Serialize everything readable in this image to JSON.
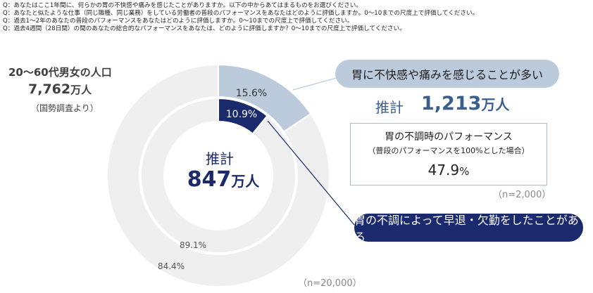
{
  "questions": [
    "Q：あなたはここ1年間に、何らかの胃の不快感や痛みを感じたことがありますか。以下の中からあてはまるものをお選びください。",
    "Q：あなたと似たような仕事（同じ職種、同じ業務）をしている労働者の普段のパフォーマンスをあなたはどのように評価しますか。0～10までの尺度上で評価してください。",
    "Q：過去1～2年のあなたの普段のパフォーマンスをあなたはどのように評価しますか。0～10までの尺度上で評価してください。",
    "Q：過去4週間（28日間）の間のあなたの総合的なパフォーマンスをあなたは、どのように評価しますか？0～10までの尺度上で評価してください。"
  ],
  "population": {
    "title": "20～60代男女の人口",
    "value": "7,762",
    "unit": "万人",
    "source": "（国勢調査より）"
  },
  "center": {
    "label": "推計",
    "value": "847",
    "unit": "万人"
  },
  "callout_discomfort": {
    "label": "胃に不快感や痛みを感じることが多い",
    "est_label": "推計",
    "est_value": "1,213",
    "est_unit": "万人"
  },
  "performance": {
    "title": "胃の不調時のパフォーマンス",
    "note": "（普段のパフォーマンスを100%とした場合）",
    "value": "47.9",
    "unit": "%"
  },
  "n_small": "（n=2,000）",
  "callout_absence": {
    "label": "胃の不調によって早退・欠勤をしたことがある"
  },
  "n_large": "（n=20,000）",
  "colors": {
    "outer_highlight": "#bccbdc",
    "inner_highlight": "#1a2a6c",
    "rest": "#efefef",
    "text_dark": "#1a2a6c",
    "text_mid": "#3a5f8f"
  },
  "chart_data": {
    "type": "pie",
    "rings": [
      {
        "ring": "outer",
        "slices": [
          {
            "label": "胃に不快感や痛みを感じることが多い",
            "value": 15.6,
            "display": "15.6%"
          },
          {
            "label": "",
            "value": 84.4,
            "display": "84.4%"
          }
        ]
      },
      {
        "ring": "inner",
        "slices": [
          {
            "label": "胃の不調によって早退・欠勤をしたことがある",
            "value": 10.9,
            "display": "10.9%"
          },
          {
            "label": "",
            "value": 89.1,
            "display": "89.1%"
          }
        ]
      }
    ]
  }
}
